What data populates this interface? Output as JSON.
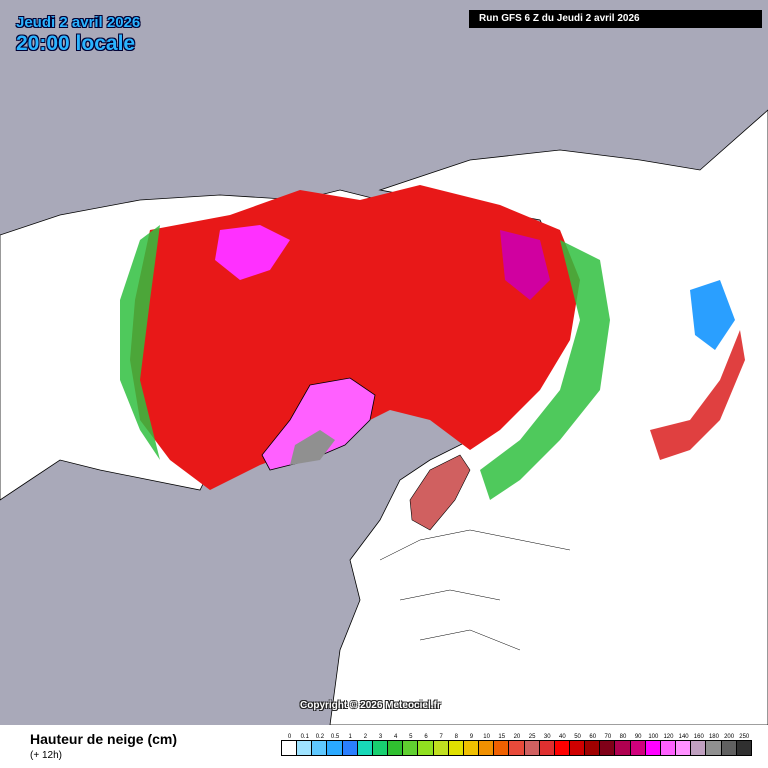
{
  "header": {
    "date_text": "Jeudi 2 avril 2026",
    "time_text": "20:00 locale",
    "run_text": "Run GFS 6 Z du Jeudi 2 avril 2026"
  },
  "map": {
    "projection": "polar-stereographic-north",
    "copyright": "Copyright © 2026 Meteociel.fr",
    "background_color": "#a9a9b9",
    "land_color": "#ffffff",
    "borders_color": "#000000"
  },
  "footer": {
    "variable_title": "Hauteur de neige (cm)",
    "lead_time": "(+ 12h)"
  },
  "legend": {
    "labels": [
      "0",
      "0.1",
      "0.2",
      "0.5",
      "1",
      "2",
      "3",
      "4",
      "5",
      "6",
      "7",
      "8",
      "9",
      "10",
      "15",
      "20",
      "25",
      "30",
      "40",
      "50",
      "60",
      "70",
      "80",
      "90",
      "100",
      "120",
      "140",
      "160",
      "180",
      "200",
      "250"
    ],
    "colors": [
      "#ffffff",
      "#9fe3ff",
      "#5ec8ff",
      "#2aa9ff",
      "#2a7fff",
      "#18d8b8",
      "#18d070",
      "#30c030",
      "#60d030",
      "#90e020",
      "#c0e020",
      "#e0e000",
      "#f0c000",
      "#f09000",
      "#f06000",
      "#e84a3a",
      "#d06060",
      "#e03030",
      "#ff0000",
      "#d00000",
      "#a00000",
      "#800018",
      "#b00050",
      "#d0007c",
      "#ff00ff",
      "#ff60ff",
      "#ff90ff",
      "#c0a0c0",
      "#909090",
      "#606060",
      "#303030"
    ]
  }
}
